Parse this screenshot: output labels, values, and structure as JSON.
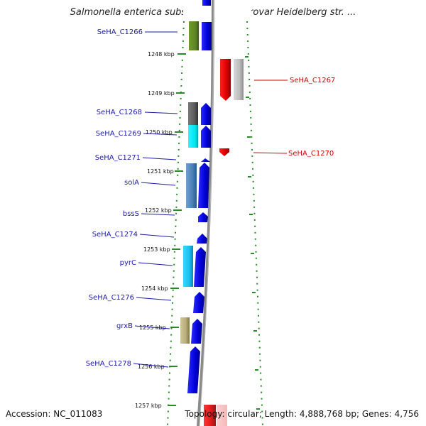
{
  "title": "Salmonella enterica subsp. enterica serovar Heidelberg str. ...",
  "footer": {
    "accession": "Accession: NC_011083",
    "topology": "Topology: circular; Length: 4,888,768 bp; Genes: 4,756"
  },
  "genes_left": [
    {
      "id": "SeHA_C1266"
    },
    {
      "id": "SeHA_C1268"
    },
    {
      "id": "SeHA_C1269"
    },
    {
      "id": "SeHA_C1271"
    },
    {
      "id": "solA"
    },
    {
      "id": "bssS"
    },
    {
      "id": "SeHA_C1274"
    },
    {
      "id": "pyrC"
    },
    {
      "id": "SeHA_C1276"
    },
    {
      "id": "grxB"
    },
    {
      "id": "SeHA_C1278"
    }
  ],
  "genes_right": [
    {
      "id": "SeHA_C1267"
    },
    {
      "id": "SeHA_C1270"
    }
  ],
  "ticks": [
    "1248 kbp",
    "1249 kbp",
    "1250 kbp",
    "1251 kbp",
    "1252 kbp",
    "1253 kbp",
    "1254 kbp",
    "1255 kbp",
    "1256 kbp",
    "1257 kbp"
  ],
  "colors": {
    "forward_strand": "#1010e0",
    "reverse_strand": "#e00000",
    "label_blue": "#1a1aa8",
    "label_red": "#d00000",
    "dots": "#2a8a2a",
    "backbone": "#8a8a8a"
  }
}
